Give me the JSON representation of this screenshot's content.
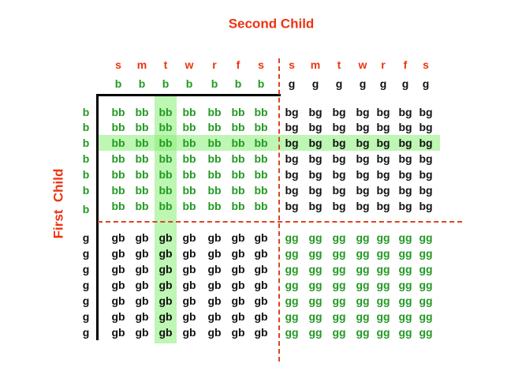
{
  "title_top": "Second Child",
  "title_left": "First  Child",
  "day_letters": [
    "s",
    "m",
    "t",
    "w",
    "r",
    "f",
    "s",
    "s",
    "m",
    "t",
    "w",
    "r",
    "f",
    "s"
  ],
  "column_sex": [
    "b",
    "b",
    "b",
    "b",
    "b",
    "b",
    "b",
    "g",
    "g",
    "g",
    "g",
    "g",
    "g",
    "g"
  ],
  "row_sex": [
    "b",
    "b",
    "b",
    "b",
    "b",
    "b",
    "b",
    "g",
    "g",
    "g",
    "g",
    "g",
    "g",
    "g"
  ],
  "cells": {
    "boy_boy": "bb",
    "boy_girl": "bg",
    "girl_boy": "gb",
    "girl_girl": "gg"
  },
  "highlight": {
    "column_day": "t",
    "column_index": 2,
    "row_index": 2,
    "color": "#88ee77"
  },
  "colors": {
    "title": "#ee3311",
    "day_letter": "#ee3311",
    "boy": "#229922",
    "girl": "#111111",
    "cell_bb": "#229922",
    "cell_bg": "#111111",
    "cell_gb": "#111111",
    "cell_gg": "#229922",
    "axis": "#000000",
    "divider": "#dd4422"
  }
}
